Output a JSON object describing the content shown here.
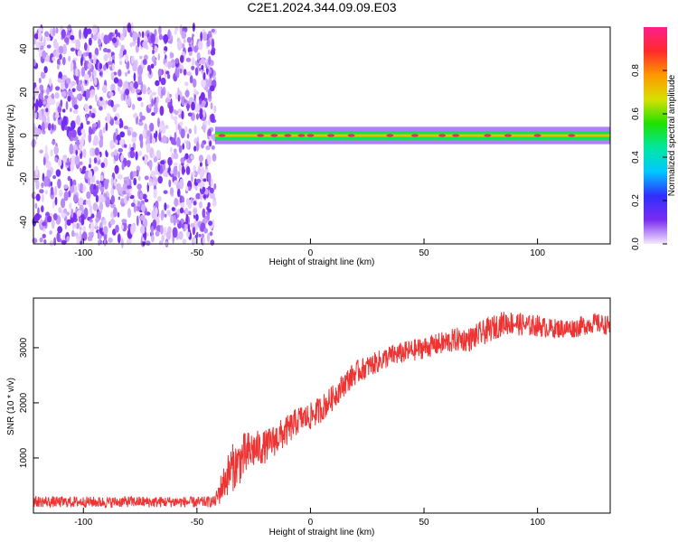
{
  "figure_title": "C2E1.2024.344.09.09.E03",
  "chart_data": [
    {
      "type": "heatmap",
      "title": "C2E1.2024.344.09.09.E03",
      "xlabel": "Height of straight line (km)",
      "ylabel": "Frequency (Hz)",
      "xlim": [
        -122,
        132
      ],
      "ylim": [
        -50,
        50
      ],
      "xticks": [
        -100,
        -50,
        0,
        50,
        100
      ],
      "yticks": [
        -40,
        -20,
        0,
        20,
        40
      ],
      "colorbar": {
        "label": "Normalized spectral amplitude",
        "range": [
          0,
          1
        ],
        "ticks": [
          0.0,
          0.2,
          0.4,
          0.6,
          0.8
        ],
        "colormap": [
          "#f6e8ff",
          "#7a2cf0",
          "#2f2fff",
          "#00c8ff",
          "#00e8a0",
          "#20e000",
          "#d8e000",
          "#ff9800",
          "#ff2a2a",
          "#ff1d8e"
        ]
      },
      "regions": [
        {
          "description_x": [
            -122,
            -42
          ],
          "content": "noise",
          "frequency_range": [
            -50,
            50
          ],
          "amplitude_range": [
            0.0,
            0.25
          ]
        },
        {
          "description_x": [
            -42,
            132
          ],
          "content": "line",
          "frequency_center": 0,
          "frequency_halfwidth": 2,
          "peak_amplitude": 1.0
        }
      ],
      "line_highlights": [
        -39,
        -22,
        -16,
        -10,
        -4,
        0,
        9,
        18,
        35,
        46,
        58,
        64,
        78,
        87,
        100,
        115
      ]
    },
    {
      "type": "line",
      "xlabel": "Height of straight line (km)",
      "ylabel": "SNR (10 * v/v)",
      "xlim": [
        -122,
        132
      ],
      "ylim": [
        0,
        3900
      ],
      "xticks": [
        -100,
        -50,
        0,
        50,
        100
      ],
      "yticks": [
        1000,
        2000,
        3000
      ],
      "grid": false,
      "series": [
        {
          "color": "#ee3333",
          "x": [
            -122,
            -110,
            -100,
            -90,
            -80,
            -70,
            -60,
            -50,
            -42,
            -40,
            -37,
            -35,
            -32,
            -30,
            -27,
            -25,
            -20,
            -15,
            -10,
            -5,
            0,
            5,
            10,
            15,
            20,
            25,
            30,
            35,
            40,
            45,
            50,
            55,
            60,
            65,
            70,
            75,
            80,
            85,
            90,
            95,
            100,
            105,
            110,
            115,
            120,
            125,
            132
          ],
          "values": [
            210,
            200,
            205,
            195,
            210,
            200,
            205,
            195,
            210,
            400,
            650,
            800,
            900,
            1000,
            1100,
            1150,
            1200,
            1350,
            1500,
            1700,
            1750,
            1900,
            2100,
            2350,
            2550,
            2650,
            2750,
            2850,
            2900,
            2950,
            3000,
            3050,
            3100,
            3150,
            3150,
            3250,
            3350,
            3450,
            3450,
            3400,
            3400,
            3350,
            3350,
            3350,
            3400,
            3450,
            3400
          ],
          "noise": [
            100,
            100,
            100,
            100,
            100,
            100,
            100,
            100,
            100,
            250,
            350,
            450,
            400,
            450,
            400,
            350,
            300,
            300,
            280,
            250,
            250,
            250,
            230,
            220,
            220,
            200,
            200,
            200,
            200,
            200,
            200,
            200,
            220,
            220,
            220,
            230,
            230,
            220,
            220,
            200,
            200,
            180,
            180,
            180,
            180,
            180,
            180
          ]
        }
      ]
    }
  ]
}
